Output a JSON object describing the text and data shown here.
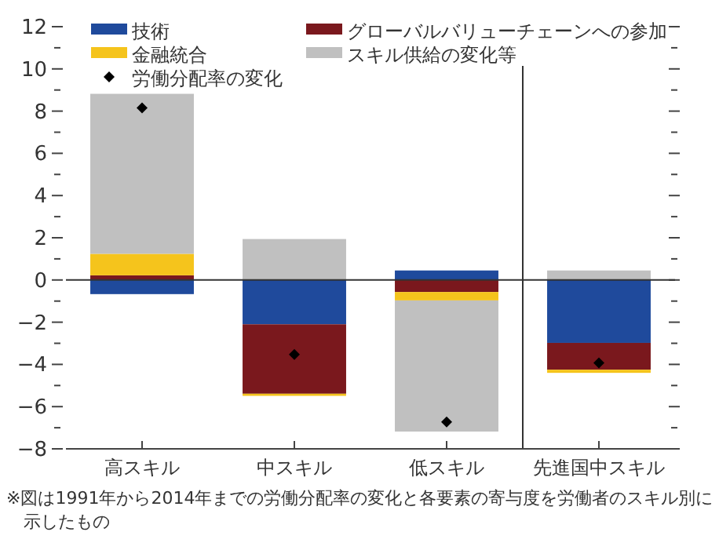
{
  "chart_data": {
    "type": "bar",
    "stacked": true,
    "categories": [
      "高スキル",
      "中スキル",
      "低スキル",
      "先進国中スキル"
    ],
    "series": [
      {
        "name": "技術",
        "color": "#1f4a9c",
        "values": [
          -0.67,
          -2.1,
          0.45,
          -2.98
        ]
      },
      {
        "name": "グローバルバリューチェーンへの参加",
        "color": "#7a181d",
        "values": [
          0.22,
          -3.29,
          -0.57,
          -1.27
        ]
      },
      {
        "name": "金融統合",
        "color": "#f5c41c",
        "values": [
          1.02,
          -0.1,
          -0.4,
          -0.15
        ]
      },
      {
        "name": "スキル供給の変化等",
        "color": "#c0c0c0",
        "values": [
          7.58,
          1.94,
          -6.21,
          0.45
        ]
      },
      {
        "name": "労働分配率の変化",
        "type": "scatter",
        "marker": "diamond",
        "color": "#000000",
        "x": [
          "高スキル",
          "中スキル",
          "低スキル",
          "先進国中スキル"
        ],
        "values": [
          8.15,
          -3.53,
          -6.73,
          -3.93
        ]
      }
    ],
    "ylim": [
      -8,
      12
    ],
    "yticks": [
      -8,
      {
        "value": -7,
        "label": null
      },
      -6,
      {
        "value": -5,
        "label": null
      },
      -4,
      {
        "value": -3,
        "label": null
      },
      -2,
      {
        "value": -1,
        "label": null
      },
      0,
      {
        "value": 1,
        "label": null
      },
      2,
      {
        "value": 3,
        "label": null
      },
      4,
      {
        "value": 5,
        "label": null
      },
      6,
      {
        "value": 7,
        "label": null
      },
      8,
      {
        "value": 9,
        "label": null
      },
      10,
      {
        "value": 11,
        "label": null
      },
      12
    ],
    "ref_lines": [
      {
        "axis": "y",
        "value": 0,
        "color": "#333333"
      }
    ],
    "legend": "top",
    "annotations": [
      "※図は1991年から2014年までの労働分配率の変化と各要素の寄与度を労働者のスキル別に示したもの"
    ]
  }
}
